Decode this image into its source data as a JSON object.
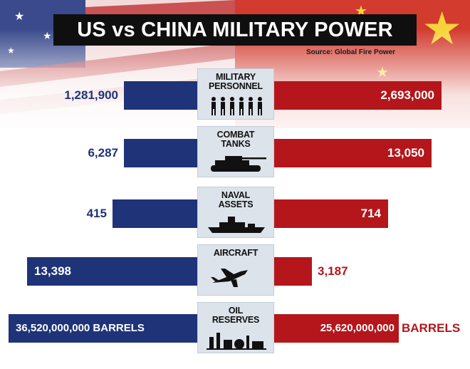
{
  "title": "US vs CHINA MILITARY POWER",
  "source": "Source: Global Fire Power",
  "unit_suffix": "BARRELS",
  "colors": {
    "us": "#1e3378",
    "china": "#b4161b",
    "panel": "#dde3ea"
  },
  "chart_data": {
    "type": "bar",
    "title": "US vs CHINA MILITARY POWER",
    "categories": [
      "MILITARY PERSONNEL",
      "COMBAT TANKS",
      "NAVAL ASSETS",
      "AIRCRAFT",
      "OIL RESERVES"
    ],
    "category_lines": [
      [
        "MILITARY",
        "PERSONNEL"
      ],
      [
        "COMBAT",
        "TANKS"
      ],
      [
        "NAVAL",
        "ASSETS"
      ],
      [
        "AIRCRAFT"
      ],
      [
        "OIL",
        "RESERVES"
      ]
    ],
    "category_icons": [
      "soldiers-icon",
      "tank-icon",
      "warship-icon",
      "fighter-jet-icon",
      "refinery-icon"
    ],
    "series": [
      {
        "values": [
          1281900,
          6287,
          415,
          13398,
          36520000000
        ],
        "labels": [
          "1,281,900",
          "6,287",
          "415",
          "13,398",
          "36,520,000,000 BARRELS"
        ]
      },
      {
        "values": [
          2693000,
          13050,
          714,
          3187,
          25620000000
        ],
        "labels": [
          "2,693,000",
          "13,050",
          "714",
          "3,187",
          "25,620,000,000"
        ]
      }
    ],
    "orientation": "horizontal-butterfly",
    "legend": "none",
    "grid": false
  }
}
